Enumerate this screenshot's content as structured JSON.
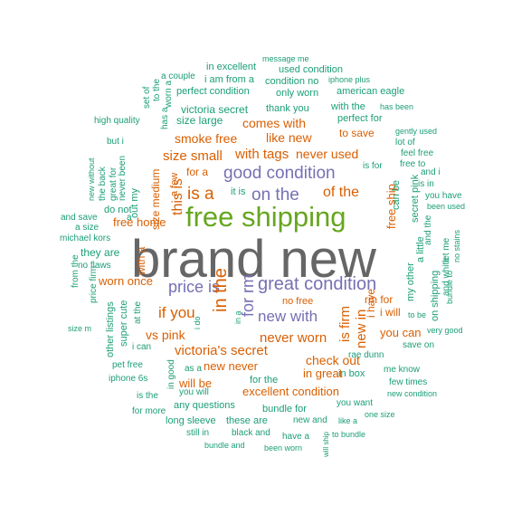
{
  "chart_data": {
    "type": "wordcloud",
    "title": "",
    "colors": {
      "gray": "#666666",
      "green": "#66a61e",
      "purple": "#7570b3",
      "orange": "#d95f02",
      "teal": "#1b9e77"
    },
    "words": [
      {
        "text": "brand new",
        "color": "gray"
      },
      {
        "text": "free shipping",
        "color": "green"
      },
      {
        "text": "great condition",
        "color": "purple"
      },
      {
        "text": "good condition",
        "color": "purple"
      },
      {
        "text": "on the",
        "color": "purple"
      },
      {
        "text": "price is",
        "color": "purple"
      },
      {
        "text": "new with",
        "color": "purple"
      },
      {
        "text": "in the",
        "color": "orange"
      },
      {
        "text": "for rm",
        "color": "purple"
      },
      {
        "text": "is a",
        "color": "orange"
      },
      {
        "text": "this is",
        "color": "orange"
      },
      {
        "text": "of the",
        "color": "orange"
      },
      {
        "text": "is firm",
        "color": "orange"
      },
      {
        "text": "new in",
        "color": "orange"
      },
      {
        "text": "if you",
        "color": "orange"
      },
      {
        "text": "never worn",
        "color": "orange"
      },
      {
        "text": "victoria's secret",
        "color": "orange"
      },
      {
        "text": "never used",
        "color": "orange"
      },
      {
        "text": "with tags",
        "color": "orange"
      },
      {
        "text": "size small",
        "color": "orange"
      },
      {
        "text": "smoke free",
        "color": "orange"
      },
      {
        "text": "like new",
        "color": "orange"
      },
      {
        "text": "comes with",
        "color": "orange"
      },
      {
        "text": "free ship",
        "color": "orange"
      },
      {
        "text": "size medium",
        "color": "orange"
      },
      {
        "text": "vs pink",
        "color": "orange"
      },
      {
        "text": "check out",
        "color": "orange"
      },
      {
        "text": "worn once",
        "color": "orange"
      },
      {
        "text": "free home",
        "color": "orange"
      },
      {
        "text": "new never",
        "color": "orange"
      },
      {
        "text": "excellent condition",
        "color": "orange"
      },
      {
        "text": "will be",
        "color": "orange"
      },
      {
        "text": "in great",
        "color": "orange"
      },
      {
        "text": "you can",
        "color": "orange"
      },
      {
        "text": "i have",
        "color": "orange"
      },
      {
        "text": "i will",
        "color": "orange"
      },
      {
        "text": "rm for",
        "color": "orange"
      },
      {
        "text": "no free",
        "color": "orange"
      },
      {
        "text": "for a",
        "color": "orange"
      },
      {
        "text": "it is",
        "color": "teal"
      },
      {
        "text": "a few",
        "color": "orange"
      },
      {
        "text": "with a",
        "color": "orange"
      },
      {
        "text": "to save",
        "color": "orange"
      },
      {
        "text": "perfect for",
        "color": "teal"
      },
      {
        "text": "victoria secret",
        "color": "teal"
      },
      {
        "text": "size large",
        "color": "teal"
      },
      {
        "text": "thank you",
        "color": "teal"
      },
      {
        "text": "with the",
        "color": "teal"
      },
      {
        "text": "perfect condition",
        "color": "teal"
      },
      {
        "text": "i am from a",
        "color": "teal"
      },
      {
        "text": "in excellent",
        "color": "teal"
      },
      {
        "text": "a couple",
        "color": "teal"
      },
      {
        "text": "message me",
        "color": "teal"
      },
      {
        "text": "used condition",
        "color": "teal"
      },
      {
        "text": "condition no",
        "color": "teal"
      },
      {
        "text": "iphone plus",
        "color": "teal"
      },
      {
        "text": "only worn",
        "color": "teal"
      },
      {
        "text": "american eagle",
        "color": "teal"
      },
      {
        "text": "has been",
        "color": "teal"
      },
      {
        "text": "high quality",
        "color": "teal"
      },
      {
        "text": "gently used",
        "color": "teal"
      },
      {
        "text": "lot of",
        "color": "teal"
      },
      {
        "text": "feel free",
        "color": "teal"
      },
      {
        "text": "free to",
        "color": "teal"
      },
      {
        "text": "is for",
        "color": "teal"
      },
      {
        "text": "can be",
        "color": "teal"
      },
      {
        "text": "and i",
        "color": "teal"
      },
      {
        "text": "is in",
        "color": "teal"
      },
      {
        "text": "you have",
        "color": "teal"
      },
      {
        "text": "been used",
        "color": "teal"
      },
      {
        "text": "and save",
        "color": "teal"
      },
      {
        "text": "a size",
        "color": "teal"
      },
      {
        "text": "michael kors",
        "color": "teal"
      },
      {
        "text": "they are",
        "color": "teal"
      },
      {
        "text": "no flaws",
        "color": "teal"
      },
      {
        "text": "do not",
        "color": "teal"
      },
      {
        "text": "out my",
        "color": "teal"
      },
      {
        "text": "never been",
        "color": "teal"
      },
      {
        "text": "great for",
        "color": "teal"
      },
      {
        "text": "the back",
        "color": "teal"
      },
      {
        "text": "new without",
        "color": "teal"
      },
      {
        "text": "but i",
        "color": "teal"
      },
      {
        "text": "set of",
        "color": "teal"
      },
      {
        "text": "to the",
        "color": "teal"
      },
      {
        "text": "worn a",
        "color": "teal"
      },
      {
        "text": "has a",
        "color": "teal"
      },
      {
        "text": "in a",
        "color": "teal"
      },
      {
        "text": "from the",
        "color": "teal"
      },
      {
        "text": "price firm",
        "color": "teal"
      },
      {
        "text": "size m",
        "color": "teal"
      },
      {
        "text": "other listings",
        "color": "teal"
      },
      {
        "text": "super cute",
        "color": "teal"
      },
      {
        "text": "at the",
        "color": "teal"
      },
      {
        "text": "i can",
        "color": "teal"
      },
      {
        "text": "i do",
        "color": "teal"
      },
      {
        "text": "pet free",
        "color": "teal"
      },
      {
        "text": "iphone 6s",
        "color": "teal"
      },
      {
        "text": "as a",
        "color": "teal"
      },
      {
        "text": "you will",
        "color": "teal"
      },
      {
        "text": "is the",
        "color": "teal"
      },
      {
        "text": "for more",
        "color": "teal"
      },
      {
        "text": "any questions",
        "color": "teal"
      },
      {
        "text": "long sleeve",
        "color": "teal"
      },
      {
        "text": "still in",
        "color": "teal"
      },
      {
        "text": "these are",
        "color": "teal"
      },
      {
        "text": "for the",
        "color": "teal"
      },
      {
        "text": "bundle for",
        "color": "teal"
      },
      {
        "text": "new and",
        "color": "teal"
      },
      {
        "text": "like a",
        "color": "teal"
      },
      {
        "text": "you want",
        "color": "teal"
      },
      {
        "text": "black and",
        "color": "teal"
      },
      {
        "text": "bundle and",
        "color": "teal"
      },
      {
        "text": "have a",
        "color": "teal"
      },
      {
        "text": "been worn",
        "color": "teal"
      },
      {
        "text": "will ship",
        "color": "teal"
      },
      {
        "text": "to bundle",
        "color": "teal"
      },
      {
        "text": "one size",
        "color": "teal"
      },
      {
        "text": "in box",
        "color": "teal"
      },
      {
        "text": "rae dunn",
        "color": "teal"
      },
      {
        "text": "me know",
        "color": "teal"
      },
      {
        "text": "few times",
        "color": "teal"
      },
      {
        "text": "new condition",
        "color": "teal"
      },
      {
        "text": "very good",
        "color": "teal"
      },
      {
        "text": "save on",
        "color": "teal"
      },
      {
        "text": "to be",
        "color": "teal"
      },
      {
        "text": "my other",
        "color": "teal"
      },
      {
        "text": "a little",
        "color": "teal"
      },
      {
        "text": "and the",
        "color": "teal"
      },
      {
        "text": "secret pink",
        "color": "teal"
      },
      {
        "text": "on shipping",
        "color": "teal"
      },
      {
        "text": "let me",
        "color": "teal"
      },
      {
        "text": "and white",
        "color": "teal"
      },
      {
        "text": "bundle to",
        "color": "teal"
      },
      {
        "text": "no stains",
        "color": "teal"
      },
      {
        "text": "in good",
        "color": "teal"
      },
      {
        "text": "a",
        "color": "teal"
      }
    ]
  }
}
